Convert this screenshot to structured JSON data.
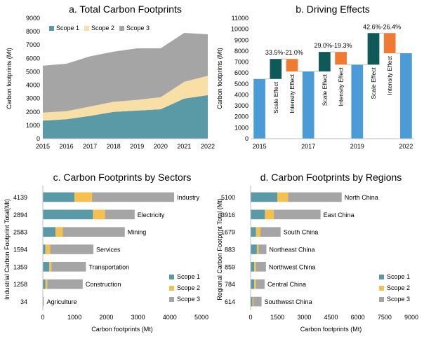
{
  "colors": {
    "scope1": "#5A9AA6",
    "scope2": "#F7DFA6",
    "scope3": "#A5A5A5",
    "driving_base": "#4A9BD6",
    "driving_scale": "#0F5958",
    "driving_intensity": "#EF7B32",
    "sector_scope2": "#F5C04F"
  },
  "chart_data": [
    {
      "id": "a",
      "type": "area",
      "stacked": true,
      "title": "a. Total Carbon Footprints",
      "xlabel": "",
      "ylabel": "Carbon footprints (Mt)",
      "x": [
        2015,
        2016,
        2017,
        2018,
        2019,
        2020,
        2021,
        2022
      ],
      "xlim": [
        2015,
        2022
      ],
      "ylim": [
        0,
        9000
      ],
      "yticks": [
        0,
        1000,
        2000,
        3000,
        4000,
        5000,
        6000,
        7000,
        8000,
        9000
      ],
      "legend": "top-left",
      "series": [
        {
          "name": "Scope 1",
          "values": [
            1350,
            1450,
            1700,
            2000,
            2100,
            2200,
            3000,
            3250
          ]
        },
        {
          "name": "Scope 2",
          "values": [
            600,
            600,
            700,
            750,
            800,
            900,
            1250,
            1450
          ]
        },
        {
          "name": "Scope 3",
          "values": [
            3500,
            3550,
            3750,
            3750,
            3850,
            3650,
            3650,
            3100
          ]
        }
      ]
    },
    {
      "id": "b",
      "type": "bar",
      "subtype": "waterfall",
      "title": "b. Driving Effects",
      "ylabel": "Carbon footprints (Mt)",
      "ylim": [
        0,
        11000
      ],
      "yticks": [
        0,
        1000,
        2000,
        3000,
        4000,
        5000,
        6000,
        7000,
        8000,
        9000,
        10000,
        11000
      ],
      "xticks": [
        "2015",
        "2017",
        "2019",
        "2022"
      ],
      "bars": [
        {
          "kind": "total",
          "label": "2015",
          "start": 0,
          "end": 5450
        },
        {
          "kind": "scale",
          "label": "Scale Effect",
          "start": 5450,
          "end": 7280
        },
        {
          "kind": "intensity",
          "label": "Intensity Effect",
          "start": 6140,
          "end": 7280
        },
        {
          "kind": "total",
          "label": "2017",
          "start": 0,
          "end": 6140
        },
        {
          "kind": "scale",
          "label": "Scale Effect",
          "start": 6140,
          "end": 7920
        },
        {
          "kind": "intensity",
          "label": "Intensity Effect",
          "start": 6760,
          "end": 7920
        },
        {
          "kind": "total",
          "label": "2019",
          "start": 0,
          "end": 6760
        },
        {
          "kind": "scale",
          "label": "Scale Effect",
          "start": 6760,
          "end": 9640
        },
        {
          "kind": "intensity",
          "label": "Intensity Effect",
          "start": 7800,
          "end": 9640
        },
        {
          "kind": "total",
          "label": "2022",
          "start": 0,
          "end": 7800
        }
      ],
      "annotations": [
        {
          "text": "33.5%",
          "period": "2015-2017"
        },
        {
          "text": "-21.0%",
          "period": "2015-2017"
        },
        {
          "text": "29.0%",
          "period": "2017-2019"
        },
        {
          "text": "-19.3%",
          "period": "2017-2019"
        },
        {
          "text": "42.6%",
          "period": "2019-2022"
        },
        {
          "text": "-26.4%",
          "period": "2019-2022"
        }
      ]
    },
    {
      "id": "c",
      "type": "bar",
      "orientation": "horizontal",
      "stacked": true,
      "title": "c. Carbon Footprints by Sectors",
      "xlabel": "Carbon footprints (Mt)",
      "ylabel": "Industrial Carbon Footprint Total(Mt)",
      "xlim": [
        0,
        5000
      ],
      "xticks": [
        0,
        1000,
        2000,
        3000,
        4000,
        5000
      ],
      "legend": "bottom-right",
      "categories": [
        "Industry",
        "Electricity",
        "Mining",
        "Services",
        "Transportation",
        "Construction",
        "Agriculture"
      ],
      "totals": [
        "4139",
        "2894",
        "2583",
        "1594",
        "1359",
        "1258",
        "34"
      ],
      "series": [
        {
          "name": "Scope 1",
          "values": [
            1000,
            1580,
            400,
            80,
            200,
            80,
            8
          ]
        },
        {
          "name": "Scope 2",
          "values": [
            550,
            380,
            230,
            150,
            70,
            60,
            4
          ]
        },
        {
          "name": "Scope 3",
          "values": [
            2589,
            934,
            1953,
            1364,
            1089,
            1118,
            22
          ]
        }
      ]
    },
    {
      "id": "d",
      "type": "bar",
      "orientation": "horizontal",
      "stacked": true,
      "title": "d. Carbon Footprints by Regions",
      "xlabel": "Carbon footprints (Mt)",
      "ylabel": "Regional Carbon Footprint Total (Mt)",
      "xlim": [
        0,
        9000
      ],
      "xticks": [
        0,
        1500,
        3000,
        4500,
        6000,
        7500,
        9000
      ],
      "legend": "bottom-right",
      "categories": [
        "North China",
        "East China",
        "South China",
        "Northeast China",
        "Northwest China",
        "Central China",
        "Southwest China"
      ],
      "totals": [
        "5100",
        "3916",
        "1679",
        "883",
        "859",
        "784",
        "614"
      ],
      "series": [
        {
          "name": "Scope 1",
          "values": [
            1500,
            800,
            300,
            350,
            200,
            200,
            100
          ]
        },
        {
          "name": "Scope 2",
          "values": [
            600,
            500,
            250,
            100,
            100,
            100,
            60
          ]
        },
        {
          "name": "Scope 3",
          "values": [
            3000,
            2616,
            1129,
            433,
            559,
            484,
            454
          ]
        }
      ]
    }
  ]
}
